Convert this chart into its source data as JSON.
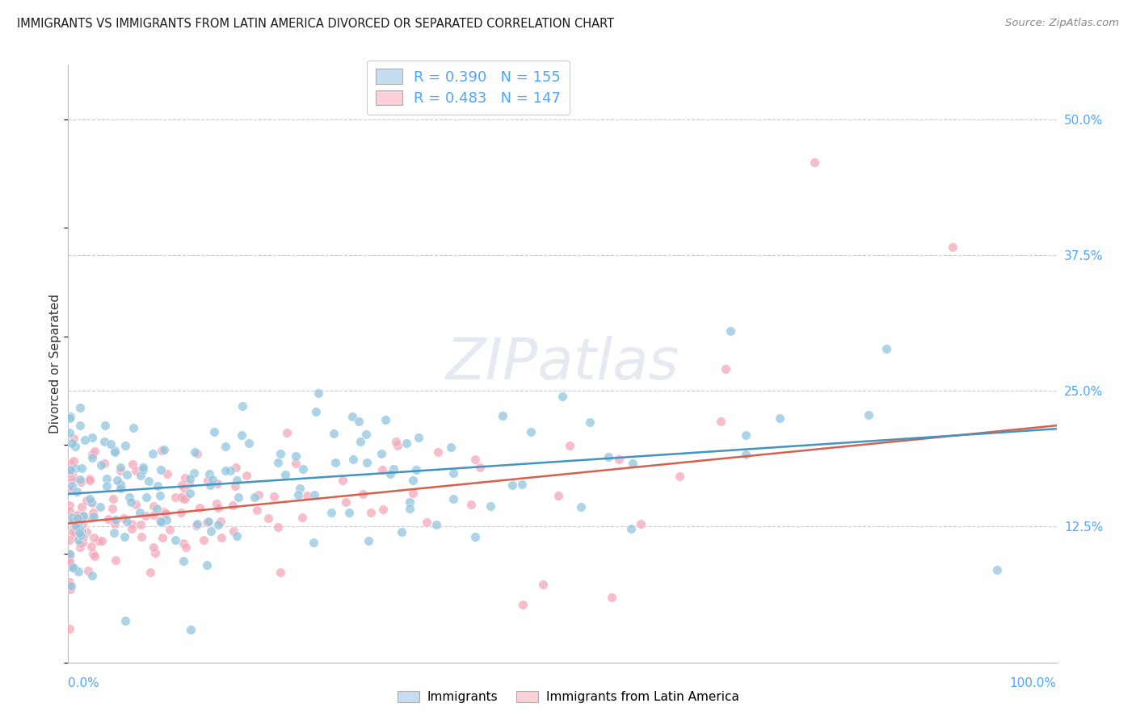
{
  "title": "IMMIGRANTS VS IMMIGRANTS FROM LATIN AMERICA DIVORCED OR SEPARATED CORRELATION CHART",
  "source": "Source: ZipAtlas.com",
  "ylabel": "Divorced or Separated",
  "yticks": [
    0.125,
    0.25,
    0.375,
    0.5
  ],
  "ytick_labels": [
    "12.5%",
    "25.0%",
    "37.5%",
    "50.0%"
  ],
  "xlim": [
    0.0,
    1.0
  ],
  "ylim": [
    0.0,
    0.55
  ],
  "series1": {
    "label": "Immigrants",
    "R": 0.39,
    "N": 155,
    "dot_color": "#92c5de",
    "dot_edge": "#92c5de",
    "fill_color": "#c6dcf0",
    "line_color": "#4393c3"
  },
  "series2": {
    "label": "Immigrants from Latin America",
    "R": 0.483,
    "N": 147,
    "dot_color": "#f4a7b9",
    "dot_edge": "#f4a7b9",
    "fill_color": "#fbd0d8",
    "line_color": "#d6604d"
  },
  "watermark": "ZIPatlas",
  "background_color": "#ffffff",
  "grid_color": "#cccccc",
  "tick_color": "#4da6ff",
  "trend1_intercept": 0.155,
  "trend1_slope": 0.06,
  "trend2_intercept": 0.128,
  "trend2_slope": 0.09
}
